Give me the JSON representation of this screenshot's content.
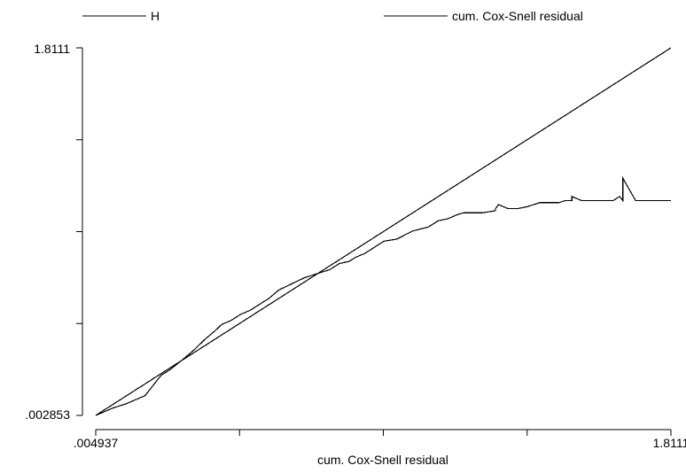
{
  "chart_data": {
    "type": "line",
    "xlabel": "cum. Cox-Snell residual",
    "ylabel": "",
    "xlim": [
      0.004937,
      1.8111
    ],
    "ylim": [
      0.002853,
      1.8111
    ],
    "x_tick_labels": [
      ".004937",
      "1.8111"
    ],
    "y_tick_labels": [
      ".002853",
      "1.8111"
    ],
    "x_ticks": [
      0.004937,
      0.4565,
      0.908,
      1.3596,
      1.8111
    ],
    "y_ticks": [
      0.002853,
      0.4549,
      0.907,
      1.359,
      1.8111
    ],
    "legend": {
      "position": "top",
      "entries": [
        "H",
        "cum. Cox-Snell residual"
      ]
    },
    "series": [
      {
        "name": "H",
        "x": [
          0.004937,
          0.03,
          0.06,
          0.1,
          0.13,
          0.16,
          0.19,
          0.21,
          0.24,
          0.28,
          0.31,
          0.35,
          0.38,
          0.4,
          0.43,
          0.46,
          0.49,
          0.52,
          0.55,
          0.58,
          0.62,
          0.66,
          0.7,
          0.74,
          0.77,
          0.8,
          0.82,
          0.85,
          0.88,
          0.91,
          0.95,
          1.0,
          1.05,
          1.08,
          1.11,
          1.14,
          1.16,
          1.2,
          1.22,
          1.26,
          1.3,
          1.33,
          1.36,
          1.4,
          1.43,
          1.46,
          1.5,
          1.53,
          1.56,
          1.6,
          1.63,
          1.66,
          1.7,
          1.73,
          1.76,
          1.8111
        ],
        "y": [
          0.002853,
          0.02,
          0.04,
          0.06,
          0.08,
          0.1,
          0.16,
          0.2,
          0.23,
          0.28,
          0.32,
          0.38,
          0.42,
          0.45,
          0.47,
          0.5,
          0.52,
          0.55,
          0.58,
          0.62,
          0.65,
          0.68,
          0.7,
          0.72,
          0.75,
          0.76,
          0.78,
          0.8,
          0.83,
          0.86,
          0.87,
          0.91,
          0.93,
          0.96,
          0.97,
          0.99,
          1.0,
          1.0,
          1.0,
          1.01,
          1.02,
          1.02,
          1.03,
          1.05,
          1.05,
          1.05,
          1.06,
          1.06,
          1.06,
          1.06,
          1.06,
          1.06,
          1.06,
          1.06,
          1.06,
          1.06
        ],
        "step_points": [
          [
            1.26,
            1.02
          ],
          [
            1.27,
            1.04
          ],
          [
            1.48,
            1.06
          ],
          [
            1.5,
            1.08
          ],
          [
            1.65,
            1.08
          ],
          [
            1.66,
            1.17
          ]
        ]
      },
      {
        "name": "cum. Cox-Snell residual",
        "x": [
          0.004937,
          1.8111
        ],
        "y": [
          0.002853,
          1.8111
        ]
      }
    ]
  }
}
